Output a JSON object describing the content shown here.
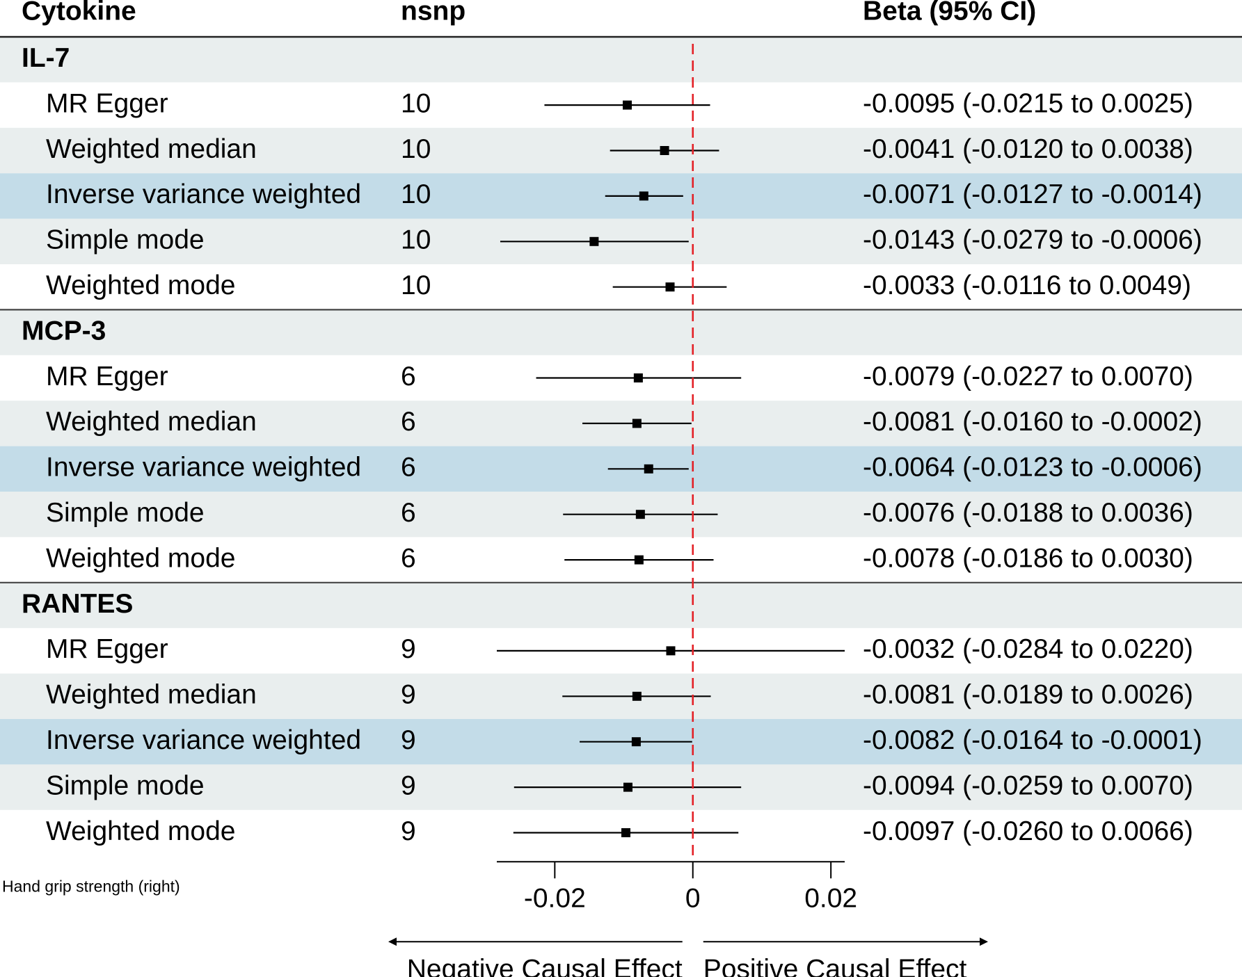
{
  "chart_data": {
    "type": "forest",
    "columns": {
      "cytokine": "Cytokine",
      "nsnp": "nsnp",
      "beta": "Beta (95% CI)"
    },
    "outcome_label": "Hand grip strength (right)",
    "x_ticks": [
      -0.02,
      0,
      0.02
    ],
    "x_tick_labels": [
      "-0.02",
      "0",
      "0.02"
    ],
    "xlim": [
      -0.0284,
      0.022
    ],
    "reference_line": 0,
    "direction_labels": {
      "negative": "Negative Causal Effect",
      "positive": "Positive Causal Effect"
    },
    "colors": {
      "row_shade": "#e9eeee",
      "ivw_highlight": "#c3dce8",
      "reference_line": "#e32026",
      "marker": "#000000"
    },
    "groups": [
      {
        "name": "IL-7",
        "rows": [
          {
            "method": "MR Egger",
            "nsnp": "10",
            "beta": -0.0095,
            "lo": -0.0215,
            "hi": 0.0025,
            "label": "-0.0095 (-0.0215 to 0.0025)",
            "highlight": false
          },
          {
            "method": "Weighted median",
            "nsnp": "10",
            "beta": -0.0041,
            "lo": -0.012,
            "hi": 0.0038,
            "label": "-0.0041 (-0.0120 to 0.0038)",
            "highlight": false
          },
          {
            "method": "Inverse variance weighted",
            "nsnp": "10",
            "beta": -0.0071,
            "lo": -0.0127,
            "hi": -0.0014,
            "label": "-0.0071 (-0.0127 to -0.0014)",
            "highlight": true
          },
          {
            "method": "Simple mode",
            "nsnp": "10",
            "beta": -0.0143,
            "lo": -0.0279,
            "hi": -0.0006,
            "label": "-0.0143 (-0.0279 to -0.0006)",
            "highlight": false
          },
          {
            "method": "Weighted mode",
            "nsnp": "10",
            "beta": -0.0033,
            "lo": -0.0116,
            "hi": 0.0049,
            "label": "-0.0033 (-0.0116 to 0.0049)",
            "highlight": false
          }
        ]
      },
      {
        "name": "MCP-3",
        "rows": [
          {
            "method": "MR Egger",
            "nsnp": "6",
            "beta": -0.0079,
            "lo": -0.0227,
            "hi": 0.007,
            "label": "-0.0079 (-0.0227 to 0.0070)",
            "highlight": false
          },
          {
            "method": "Weighted median",
            "nsnp": "6",
            "beta": -0.0081,
            "lo": -0.016,
            "hi": -0.0002,
            "label": "-0.0081 (-0.0160 to -0.0002)",
            "highlight": false
          },
          {
            "method": "Inverse variance weighted",
            "nsnp": "6",
            "beta": -0.0064,
            "lo": -0.0123,
            "hi": -0.0006,
            "label": "-0.0064 (-0.0123 to -0.0006)",
            "highlight": true
          },
          {
            "method": "Simple mode",
            "nsnp": "6",
            "beta": -0.0076,
            "lo": -0.0188,
            "hi": 0.0036,
            "label": "-0.0076 (-0.0188 to 0.0036)",
            "highlight": false
          },
          {
            "method": "Weighted mode",
            "nsnp": "6",
            "beta": -0.0078,
            "lo": -0.0186,
            "hi": 0.003,
            "label": "-0.0078 (-0.0186 to 0.0030)",
            "highlight": false
          }
        ]
      },
      {
        "name": "RANTES",
        "rows": [
          {
            "method": "MR Egger",
            "nsnp": "9",
            "beta": -0.0032,
            "lo": -0.0284,
            "hi": 0.022,
            "label": "-0.0032 (-0.0284 to 0.0220)",
            "highlight": false
          },
          {
            "method": "Weighted median",
            "nsnp": "9",
            "beta": -0.0081,
            "lo": -0.0189,
            "hi": 0.0026,
            "label": "-0.0081 (-0.0189 to 0.0026)",
            "highlight": false
          },
          {
            "method": "Inverse variance weighted",
            "nsnp": "9",
            "beta": -0.0082,
            "lo": -0.0164,
            "hi": -0.0001,
            "label": "-0.0082 (-0.0164 to -0.0001)",
            "highlight": true
          },
          {
            "method": "Simple mode",
            "nsnp": "9",
            "beta": -0.0094,
            "lo": -0.0259,
            "hi": 0.007,
            "label": "-0.0094 (-0.0259 to 0.0070)",
            "highlight": false
          },
          {
            "method": "Weighted mode",
            "nsnp": "9",
            "beta": -0.0097,
            "lo": -0.026,
            "hi": 0.0066,
            "label": "-0.0097 (-0.0260 to 0.0066)",
            "highlight": false
          }
        ]
      }
    ]
  }
}
